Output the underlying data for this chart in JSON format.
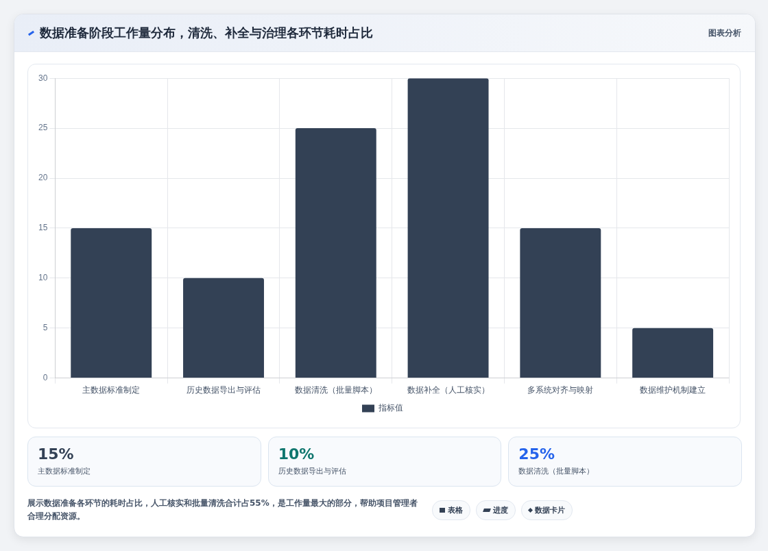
{
  "chart_data": [
    {
      "type": "bar",
      "title": "数据准备阶段工作量分布，清洗、补全与治理各环节耗时占比",
      "categories": [
        "主数据标准制定",
        "历史数据导出与评估",
        "数据清洗（批量脚本）",
        "数据补全（人工核实）",
        "多系统对齐与映射",
        "数据维护机制建立"
      ],
      "series": [
        {
          "name": "指标值",
          "color": "#334155",
          "values": [
            15,
            10,
            25,
            30,
            15,
            5
          ]
        }
      ],
      "ylim": [
        0,
        30
      ],
      "yticks": [
        0,
        5,
        10,
        15,
        20,
        25,
        30
      ],
      "grid": true,
      "legend": "bottom",
      "annotations": [
        "图表分析",
        "展示数据准备各环节的耗时占比，人工核实和批量清洗合计占55%，是工作量最大的部分，帮助项目管理者合理分配资源。",
        "表格",
        "进度",
        "数据卡片"
      ]
    },
    {
      "type": "other",
      "categories": [
        "主数据标准制定",
        "历史数据导出与评估",
        "数据清洗（批量脚本）"
      ],
      "value_labels": [
        "15%",
        "10%",
        "25%"
      ]
    }
  ]
}
